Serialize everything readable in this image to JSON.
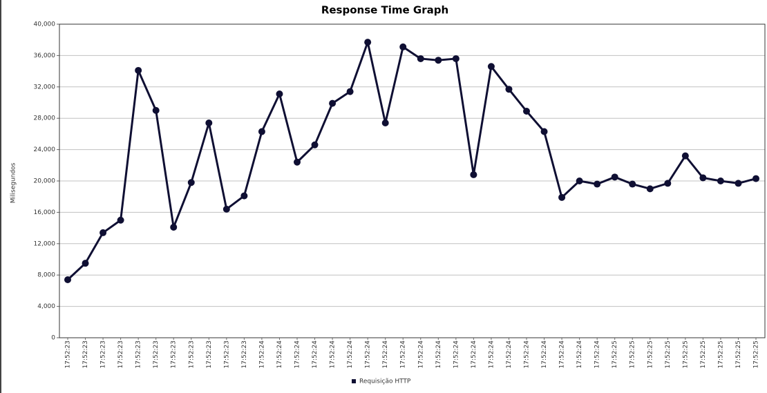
{
  "chart_data": {
    "type": "line",
    "title": "Response Time Graph",
    "y_label": "Milisegundos",
    "categories": [
      "17:52:23",
      "17:52:23",
      "17:52:23",
      "17:52:23",
      "17:52:23",
      "17:52:23",
      "17:52:23",
      "17:52:23",
      "17:52:23",
      "17:52:23",
      "17:52:23",
      "17:52:24",
      "17:52:24",
      "17:52:24",
      "17:52:24",
      "17:52:24",
      "17:52:24",
      "17:52:24",
      "17:52:24",
      "17:52:24",
      "17:52:24",
      "17:52:24",
      "17:52:24",
      "17:52:24",
      "17:52:24",
      "17:52:24",
      "17:52:24",
      "17:52:24",
      "17:52:24",
      "17:52:24",
      "17:52:24",
      "17:52:25",
      "17:52:25",
      "17:52:25",
      "17:52:25",
      "17:52:25",
      "17:52:25",
      "17:52:25",
      "17:52:25",
      "17:52:25"
    ],
    "series": [
      {
        "name": "Requisição HTTP",
        "color": "#0f0f33",
        "values": [
          7400,
          9500,
          13400,
          15000,
          34100,
          29000,
          14100,
          19800,
          27400,
          16400,
          18100,
          26300,
          31100,
          22400,
          24600,
          29900,
          31400,
          37700,
          27400,
          37100,
          35600,
          35400,
          35600,
          20800,
          34600,
          31700,
          28900,
          26300,
          17900,
          20000,
          19600,
          20500,
          19600,
          19000,
          19700,
          23200,
          20400,
          20000,
          19700,
          20300
        ]
      }
    ],
    "ylim": [
      0,
      40000
    ],
    "yticks": [
      0,
      {
        "value": 4000,
        "label": "4,000"
      },
      {
        "value": 8000,
        "label": "8,000"
      },
      {
        "value": 12000,
        "label": "12,000"
      },
      {
        "value": 16000,
        "label": "16,000"
      },
      {
        "value": 20000,
        "label": "20,000"
      },
      {
        "value": 24000,
        "label": "24,000"
      },
      {
        "value": 28000,
        "label": "28,000"
      },
      {
        "value": 32000,
        "label": "32,000"
      },
      {
        "value": 36000,
        "label": "36,000"
      },
      {
        "value": 40000,
        "label": "40,000"
      }
    ],
    "grid": true,
    "legend": "bottom"
  }
}
